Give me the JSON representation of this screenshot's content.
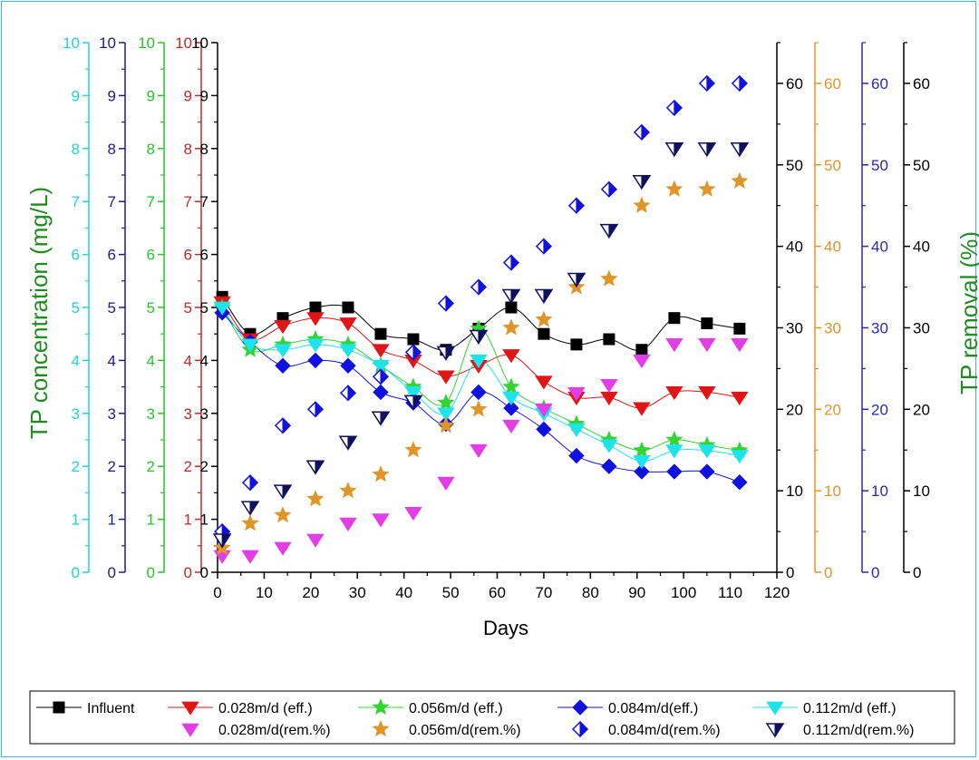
{
  "chart_data": {
    "type": "line",
    "xlabel": "Days",
    "ylabel_left": "TP concentration (mg/L)",
    "ylabel_right": "TP removal (%)",
    "xlim": [
      0,
      120
    ],
    "x_ticks": [
      0,
      10,
      20,
      30,
      40,
      50,
      60,
      70,
      80,
      90,
      100,
      110,
      120
    ],
    "left_axes": [
      {
        "color": "#1fd3d8",
        "range": [
          0,
          10
        ],
        "ticks": [
          "0",
          "1",
          "2",
          "3",
          "4",
          "5",
          "6",
          "7",
          "8",
          "9",
          "10"
        ]
      },
      {
        "color": "#1c1c8c",
        "range": [
          0,
          10
        ],
        "ticks": [
          "0",
          "1",
          "2",
          "3",
          "4",
          "5",
          "6",
          "7",
          "8",
          "9",
          "10"
        ]
      },
      {
        "color": "#27c527",
        "range": [
          0,
          10
        ],
        "ticks": [
          "0",
          "1",
          "2",
          "3",
          "4",
          "5",
          "6",
          "7",
          "8",
          "9",
          "10"
        ]
      },
      {
        "color": "#c0282a",
        "range": [
          0,
          10
        ],
        "ticks": [
          "0",
          "1",
          "2",
          "3",
          "4",
          "5",
          "6",
          "7",
          "8",
          "9",
          "10"
        ]
      },
      {
        "color": "#000000",
        "range": [
          0,
          10
        ],
        "ticks": [
          "0",
          "1",
          "2",
          "3",
          "4",
          "5",
          "6",
          "7",
          "8",
          "9",
          "10"
        ]
      }
    ],
    "right_axes": [
      {
        "color": "#000000",
        "range": [
          0,
          65
        ],
        "ticks": [
          "0",
          "10",
          "20",
          "30",
          "40",
          "50",
          "60"
        ]
      },
      {
        "color": "#e0952a",
        "range": [
          0,
          65
        ],
        "ticks": [
          "0",
          "10",
          "20",
          "30",
          "40",
          "50",
          "60"
        ]
      },
      {
        "color": "#2a2aa8",
        "range": [
          0,
          65
        ],
        "ticks": [
          "0",
          "10",
          "20",
          "30",
          "40",
          "50",
          "60"
        ]
      },
      {
        "color": "#000000",
        "range": [
          0,
          65
        ],
        "ticks": [
          "0",
          "10",
          "20",
          "30",
          "40",
          "50",
          "60"
        ]
      }
    ],
    "series": [
      {
        "name": "Influent",
        "axis": "left",
        "color": "#000000",
        "marker": "square",
        "line": true,
        "x": [
          1,
          7,
          14,
          21,
          28,
          35,
          42,
          49,
          56,
          63,
          70,
          77,
          84,
          91,
          98,
          105,
          112
        ],
        "y": [
          5.2,
          4.5,
          4.8,
          5.0,
          5.0,
          4.5,
          4.4,
          4.2,
          4.6,
          5.0,
          4.5,
          4.3,
          4.4,
          4.2,
          4.8,
          4.7,
          4.6
        ]
      },
      {
        "name": "0.028m/d (eff.)",
        "axis": "left",
        "color": "#e01515",
        "marker": "triangle-down",
        "line": true,
        "x": [
          1,
          7,
          14,
          21,
          28,
          35,
          42,
          49,
          56,
          63,
          70,
          77,
          84,
          91,
          98,
          105,
          112
        ],
        "y": [
          5.1,
          4.4,
          4.65,
          4.8,
          4.7,
          4.2,
          4.0,
          3.7,
          3.9,
          4.1,
          3.6,
          3.3,
          3.3,
          3.1,
          3.4,
          3.4,
          3.3
        ]
      },
      {
        "name": "0.056m/d (eff.)",
        "axis": "left",
        "color": "#33d433",
        "marker": "star",
        "line": true,
        "x": [
          1,
          7,
          14,
          21,
          28,
          35,
          42,
          49,
          56,
          63,
          70,
          77,
          84,
          91,
          98,
          105,
          112
        ],
        "y": [
          5.0,
          4.2,
          4.3,
          4.4,
          4.3,
          3.9,
          3.5,
          3.2,
          4.6,
          3.5,
          3.1,
          2.8,
          2.5,
          2.3,
          2.5,
          2.4,
          2.3
        ]
      },
      {
        "name": "0.084m/d(eff.)",
        "axis": "left",
        "color": "#1010e0",
        "marker": "diamond",
        "line": true,
        "x": [
          1,
          7,
          14,
          21,
          28,
          35,
          42,
          49,
          56,
          63,
          70,
          77,
          84,
          91,
          98,
          105,
          112
        ],
        "y": [
          4.9,
          4.35,
          3.9,
          4.0,
          3.9,
          3.4,
          3.2,
          2.8,
          3.4,
          3.1,
          2.7,
          2.2,
          2.0,
          1.9,
          1.9,
          1.9,
          1.7
        ]
      },
      {
        "name": "0.112m/d (eff.)",
        "axis": "left",
        "color": "#1fe3ea",
        "marker": "triangle-down",
        "line": true,
        "x": [
          1,
          7,
          14,
          21,
          28,
          35,
          42,
          49,
          56,
          63,
          70,
          77,
          84,
          91,
          98,
          105,
          112
        ],
        "y": [
          5.0,
          4.3,
          4.2,
          4.3,
          4.2,
          3.9,
          3.4,
          3.0,
          4.0,
          3.3,
          3.0,
          2.7,
          2.4,
          2.1,
          2.3,
          2.3,
          2.2
        ]
      },
      {
        "name": "0.028m/d(rem.%)",
        "axis": "right",
        "color": "#e23ee6",
        "marker": "triangle-down",
        "line": false,
        "x": [
          1,
          7,
          14,
          21,
          28,
          35,
          42,
          49,
          56,
          63,
          70,
          77,
          84,
          91,
          98,
          105,
          112
        ],
        "y": [
          2,
          2,
          3,
          4,
          6,
          6.5,
          7.3,
          11,
          15,
          18,
          20,
          22,
          23,
          26,
          28,
          28,
          28
        ]
      },
      {
        "name": "0.056m/d(rem.%)",
        "axis": "right",
        "color": "#e0952a",
        "marker": "star",
        "line": false,
        "x": [
          1,
          7,
          14,
          21,
          28,
          35,
          42,
          49,
          56,
          63,
          70,
          77,
          84,
          91,
          98,
          105,
          112
        ],
        "y": [
          3,
          6,
          7,
          9,
          10,
          12,
          15,
          18,
          20,
          30,
          31,
          35,
          36,
          45,
          47,
          47,
          48
        ]
      },
      {
        "name": "0.084m/d(rem.%)",
        "axis": "right",
        "color": "#1010e0",
        "marker": "half-diamond",
        "line": false,
        "x": [
          1,
          7,
          14,
          21,
          28,
          35,
          42,
          49,
          56,
          63,
          70,
          77,
          84,
          91,
          98,
          105,
          112
        ],
        "y": [
          5,
          11,
          18,
          20,
          22,
          24,
          27,
          33,
          35,
          38,
          40,
          45,
          47,
          54,
          57,
          60,
          60
        ]
      },
      {
        "name": "0.112m/d(rem.%)",
        "axis": "right",
        "color": "#101060",
        "marker": "half-triangle-down",
        "line": false,
        "x": [
          1,
          7,
          14,
          21,
          28,
          35,
          42,
          49,
          56,
          63,
          70,
          77,
          84,
          91,
          98,
          105,
          112
        ],
        "y": [
          4,
          8,
          10,
          13,
          16,
          19,
          21,
          27,
          29,
          34,
          34,
          36,
          42,
          48,
          52,
          52,
          52
        ]
      }
    ]
  }
}
